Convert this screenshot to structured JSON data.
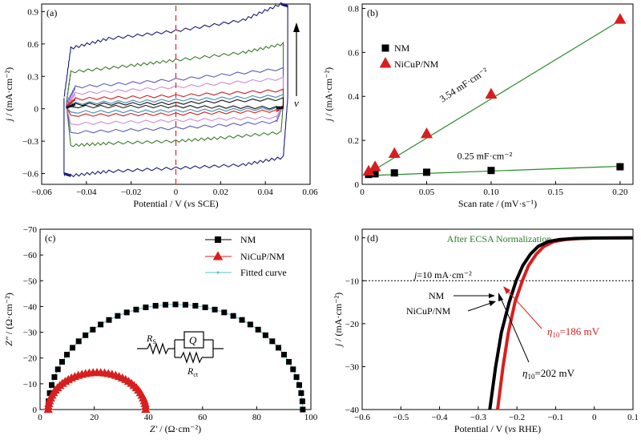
{
  "chart_data": [
    {
      "type": "line",
      "panel_label": "(a)",
      "xlabel_main": "Potential / V (",
      "xlabel_italic": "vs",
      "xlabel_tail": " SCE)",
      "ylabel_italic": "j",
      "ylabel_rest": " / (mA·cm⁻²)",
      "xlim": [
        -0.06,
        0.06
      ],
      "ylim": [
        -0.7,
        0.97
      ],
      "xticks": [
        -0.06,
        -0.04,
        -0.02,
        0,
        0.02,
        0.04,
        0.06
      ],
      "xticklabels": [
        "−0.06",
        "−0.04",
        "−0.02",
        "0",
        "0.02",
        "0.04",
        "0.06"
      ],
      "yticks": [
        -0.6,
        -0.3,
        0,
        0.3,
        0.6,
        0.9
      ],
      "yticklabels": [
        "−0.6",
        "−0.3",
        "0",
        "0.3",
        "0.6",
        "0.9"
      ],
      "arrow_label": "v",
      "dashed_line_x": 0,
      "cv_loops": [
        {
          "color": "#1a1a7a",
          "upper": [
            [
              -0.05,
              0.1
            ],
            [
              -0.047,
              0.56
            ],
            [
              -0.03,
              0.65
            ],
            [
              0,
              0.72
            ],
            [
              0.03,
              0.82
            ],
            [
              0.047,
              0.97
            ],
            [
              0.05,
              0.95
            ]
          ],
          "lower": [
            [
              0.05,
              0.1
            ],
            [
              0.048,
              -0.45
            ],
            [
              0.03,
              -0.52
            ],
            [
              0,
              -0.55
            ],
            [
              -0.03,
              -0.58
            ],
            [
              -0.047,
              -0.62
            ],
            [
              -0.05,
              -0.6
            ]
          ]
        },
        {
          "color": "#3a7a2a",
          "upper": [
            [
              -0.049,
              0.05
            ],
            [
              -0.047,
              0.34
            ],
            [
              -0.02,
              0.4
            ],
            [
              0,
              0.45
            ],
            [
              0.03,
              0.52
            ],
            [
              0.048,
              0.6
            ]
          ],
          "lower": [
            [
              0.048,
              0.05
            ],
            [
              0.047,
              -0.22
            ],
            [
              0.02,
              -0.27
            ],
            [
              0,
              -0.3
            ],
            [
              -0.03,
              -0.32
            ],
            [
              -0.047,
              -0.34
            ]
          ]
        },
        {
          "color": "#5a5ac0",
          "upper": [
            [
              -0.049,
              0.04
            ],
            [
              -0.045,
              0.2
            ],
            [
              0,
              0.27
            ],
            [
              0.048,
              0.37
            ]
          ],
          "lower": [
            [
              0.048,
              0.04
            ],
            [
              0.045,
              -0.12
            ],
            [
              0,
              -0.18
            ],
            [
              -0.047,
              -0.22
            ]
          ]
        },
        {
          "color": "#d08ad0",
          "upper": [
            [
              -0.049,
              0.03
            ],
            [
              -0.045,
              0.14
            ],
            [
              0,
              0.2
            ],
            [
              0.048,
              0.28
            ]
          ],
          "lower": [
            [
              0.048,
              0.03
            ],
            [
              0.045,
              -0.08
            ],
            [
              0,
              -0.11
            ],
            [
              -0.047,
              -0.14
            ]
          ]
        },
        {
          "color": "#d02020",
          "upper": [
            [
              -0.049,
              0.02
            ],
            [
              -0.045,
              0.09
            ],
            [
              0,
              0.12
            ],
            [
              0.048,
              0.17
            ]
          ],
          "lower": [
            [
              0.048,
              0.02
            ],
            [
              0.045,
              -0.02
            ],
            [
              0,
              -0.05
            ],
            [
              -0.047,
              -0.06
            ]
          ]
        },
        {
          "color": "#3a8ab0",
          "upper": [
            [
              -0.049,
              0.01
            ],
            [
              -0.045,
              0.05
            ],
            [
              0,
              0.08
            ],
            [
              0.048,
              0.12
            ]
          ],
          "lower": [
            [
              0.048,
              0.01
            ],
            [
              0.045,
              0.0
            ],
            [
              0,
              -0.02
            ],
            [
              -0.047,
              -0.03
            ]
          ]
        },
        {
          "color": "#111111",
          "upper": [
            [
              -0.049,
              0.01
            ],
            [
              -0.045,
              0.04
            ],
            [
              0,
              0.05
            ],
            [
              0.048,
              0.09
            ]
          ],
          "lower": [
            [
              0.048,
              0.01
            ],
            [
              0.045,
              0.01
            ],
            [
              0,
              0.02
            ],
            [
              -0.047,
              0.02
            ]
          ]
        }
      ]
    },
    {
      "type": "scatter",
      "panel_label": "(b)",
      "xlabel": "Scan rate / (mV·s⁻¹)",
      "ylabel_italic": "j",
      "ylabel_rest": " / (mA·cm⁻²)",
      "xlim": [
        0,
        0.21
      ],
      "ylim": [
        0,
        0.82
      ],
      "xticks": [
        0,
        0.05,
        0.1,
        0.15,
        0.2
      ],
      "xticklabels": [
        "0",
        "0.05",
        "0.10",
        "0.15",
        "0.20"
      ],
      "yticks": [
        0,
        0.2,
        0.4,
        0.6,
        0.8
      ],
      "yticklabels": [
        "0",
        "0.2",
        "0.4",
        "0.6",
        "0.8"
      ],
      "legend_position": "top-left",
      "series": [
        {
          "name": "NM",
          "marker": "square",
          "color": "#000000",
          "x": [
            0.005,
            0.01,
            0.025,
            0.05,
            0.1,
            0.2
          ],
          "y": [
            0.045,
            0.048,
            0.052,
            0.055,
            0.063,
            0.08
          ],
          "fit": [
            [
              0.005,
              0.04
            ],
            [
              0.2,
              0.082
            ]
          ],
          "fit_color": "#2a8a2a"
        },
        {
          "name": "NiCuP/NM",
          "marker": "triangle",
          "color": "#d81e1e",
          "x": [
            0.005,
            0.01,
            0.025,
            0.05,
            0.1,
            0.2
          ],
          "y": [
            0.06,
            0.08,
            0.14,
            0.23,
            0.41,
            0.75
          ],
          "fit": [
            [
              0.005,
              0.05
            ],
            [
              0.2,
              0.745
            ]
          ],
          "fit_color": "#2a8a2a"
        }
      ],
      "annotations": [
        {
          "text": "3.54 mF·cm⁻²",
          "x": 0.08,
          "y": 0.44,
          "rotate": -33
        },
        {
          "text": "0.25 mF·cm⁻²",
          "x": 0.095,
          "y": 0.115,
          "rotate": 0
        }
      ]
    },
    {
      "type": "scatter",
      "panel_label": "(c)",
      "xlabel_italic": "Z′",
      "xlabel_rest": " / (Ω·cm⁻²)",
      "ylabel_italic": "Z″",
      "ylabel_rest": " / (Ω·cm⁻²)",
      "xlim": [
        0,
        100
      ],
      "ylim": [
        0,
        -70
      ],
      "xticks": [
        0,
        20,
        40,
        60,
        80,
        100
      ],
      "xticklabels": [
        "0",
        "20",
        "40",
        "60",
        "80",
        "100"
      ],
      "yticks": [
        0,
        -10,
        -20,
        -30,
        -40,
        -50,
        -60,
        -70
      ],
      "yticklabels": [
        "0",
        "−10",
        "−20",
        "−30",
        "−40",
        "−50",
        "−60",
        "−70"
      ],
      "legend_position": "top-right",
      "series": [
        {
          "name": "NM",
          "marker": "square",
          "color": "#000000",
          "arc": {
            "x0": 3,
            "x1": 97,
            "height": 40.8
          },
          "n_points": 40
        },
        {
          "name": "NiCuP/NM",
          "marker": "triangle",
          "color": "#d81e1e",
          "arc": {
            "x0": 3,
            "x1": 39,
            "height": 14.3
          },
          "n_points": 40
        },
        {
          "name": "Fitted curve",
          "marker": "line",
          "color": "#5ac0c8"
        }
      ],
      "circuit": {
        "Rs": "R",
        "Rs_sub": "S",
        "Q": "Q",
        "Rct": "R",
        "Rct_sub": "ct"
      }
    },
    {
      "type": "line",
      "panel_label": "(d)",
      "title": "After ECSA Normalization",
      "title_color": "#2a7a2a",
      "xlabel_main": "Potential / V (",
      "xlabel_italic": "vs",
      "xlabel_tail": " RHE)",
      "ylabel_italic": "j",
      "ylabel_rest": " / (mA·cm⁻²)",
      "xlim": [
        -0.6,
        0.1
      ],
      "ylim": [
        -40,
        2
      ],
      "xticks": [
        -0.6,
        -0.5,
        -0.4,
        -0.3,
        -0.2,
        -0.1,
        0,
        0.1
      ],
      "xticklabels": [
        "−0.6",
        "−0.5",
        "−0.4",
        "−0.3",
        "−0.2",
        "−0.1",
        "0",
        "0.1"
      ],
      "yticks": [
        0,
        -10,
        -20,
        -30,
        -40
      ],
      "yticklabels": [
        "0",
        "−10",
        "−20",
        "−30",
        "−40"
      ],
      "reference_line": {
        "y": -10,
        "label_italic": "j",
        "label_rest": "=10 mA·cm⁻²"
      },
      "series": [
        {
          "name": "NM",
          "color": "#000000",
          "points": [
            [
              -0.27,
              -40
            ],
            [
              -0.255,
              -30
            ],
            [
              -0.24,
              -22
            ],
            [
              -0.22,
              -15
            ],
            [
              -0.202,
              -10
            ],
            [
              -0.185,
              -6.5
            ],
            [
              -0.165,
              -3.8
            ],
            [
              -0.145,
              -2.0
            ],
            [
              -0.12,
              -0.9
            ],
            [
              -0.09,
              -0.4
            ],
            [
              -0.05,
              -0.15
            ],
            [
              0,
              -0.05
            ],
            [
              0.1,
              0
            ]
          ]
        },
        {
          "name": "NiCuP/NM",
          "color": "#d81e1e",
          "points": [
            [
              -0.25,
              -40
            ],
            [
              -0.236,
              -30
            ],
            [
              -0.222,
              -22
            ],
            [
              -0.205,
              -15
            ],
            [
              -0.186,
              -10
            ],
            [
              -0.17,
              -6.5
            ],
            [
              -0.15,
              -3.8
            ],
            [
              -0.13,
              -2.0
            ],
            [
              -0.105,
              -0.9
            ],
            [
              -0.075,
              -0.4
            ],
            [
              -0.035,
              -0.15
            ],
            [
              0,
              -0.05
            ],
            [
              0.1,
              0
            ]
          ]
        }
      ],
      "annotations": [
        {
          "label_italic": "η",
          "label_sub": "10",
          "label_rest": "=186 mV",
          "color": "#d81e1e"
        },
        {
          "label_italic": "η",
          "label_sub": "10",
          "label_rest": "=202 mV",
          "color": "#000000"
        }
      ]
    }
  ]
}
